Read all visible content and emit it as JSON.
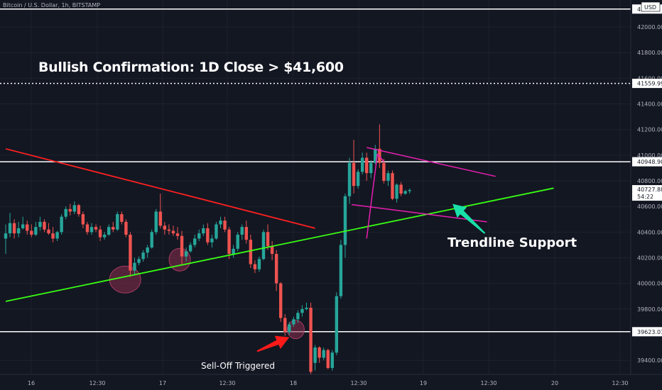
{
  "header": {
    "symbol": "Bitcoin / U.S. Dollar, 1h, BITSTAMP"
  },
  "annotations": {
    "title": "Bullish Confirmation: 1D Close > $41,600",
    "trendline_support": "Trendline Support",
    "selloff": "Sell-Off Triggered"
  },
  "colors": {
    "background": "#131722",
    "up": "#26a69a",
    "down": "#ef5350",
    "support_line": "#39ff14",
    "resistance_line": "#ff2020",
    "channel": "#e81fb0",
    "arrow_red": "#ff1a1a",
    "arrow_teal": "#18e0a8",
    "circle": "#8b2d4d"
  },
  "chart_data": {
    "type": "candlestick",
    "title": "",
    "currency": "USD",
    "current_price_label": "40727.88",
    "countdown_label": "54:22",
    "y_ticks": [
      "42000.00",
      "41800.00",
      "41600.00",
      "41400.00",
      "41200.00",
      "41000.00",
      "40800.00",
      "40600.00",
      "40400.00",
      "40200.00",
      "40000.00",
      "39800.00",
      "39400.00"
    ],
    "x_ticks": [
      "16",
      "12:30",
      "17",
      "12:30",
      "18",
      "12:30",
      "19",
      "12:30",
      "20",
      "12:30"
    ],
    "horizontal_levels": [
      {
        "label": "42140",
        "value": 42140,
        "style": "solid"
      },
      {
        "label": "41559.99",
        "value": 41559.99,
        "style": "dashed"
      },
      {
        "label": "40948.90",
        "value": 40948.9,
        "style": "solid"
      },
      {
        "label": "39623.01",
        "value": 39623.01,
        "style": "solid"
      }
    ],
    "ylim": [
      39290,
      42205
    ],
    "candles": [
      [
        40350,
        40460,
        40230,
        40390
      ],
      [
        40390,
        40550,
        40360,
        40470
      ],
      [
        40470,
        40500,
        40350,
        40390
      ],
      [
        40390,
        40480,
        40360,
        40430
      ],
      [
        40430,
        40520,
        40420,
        40460
      ],
      [
        40460,
        40490,
        40380,
        40410
      ],
      [
        40410,
        40460,
        40360,
        40380
      ],
      [
        40380,
        40480,
        40370,
        40440
      ],
      [
        40440,
        40520,
        40410,
        40480
      ],
      [
        40480,
        40500,
        40400,
        40420
      ],
      [
        40420,
        40470,
        40380,
        40390
      ],
      [
        40390,
        40440,
        40320,
        40350
      ],
      [
        40350,
        40410,
        40330,
        40400
      ],
      [
        40400,
        40540,
        40380,
        40520
      ],
      [
        40520,
        40600,
        40500,
        40580
      ],
      [
        40580,
        40620,
        40530,
        40560
      ],
      [
        40560,
        40640,
        40540,
        40610
      ],
      [
        40610,
        40620,
        40520,
        40540
      ],
      [
        40540,
        40560,
        40430,
        40460
      ],
      [
        40460,
        40480,
        40380,
        40400
      ],
      [
        40400,
        40470,
        40380,
        40440
      ],
      [
        40440,
        40460,
        40400,
        40420
      ],
      [
        40420,
        40450,
        40330,
        40360
      ],
      [
        40360,
        40400,
        40340,
        40380
      ],
      [
        40380,
        40460,
        40370,
        40440
      ],
      [
        40440,
        40480,
        40400,
        40420
      ],
      [
        40420,
        40560,
        40410,
        40540
      ],
      [
        40540,
        40560,
        40460,
        40480
      ],
      [
        40480,
        40500,
        40360,
        40380
      ],
      [
        40380,
        40400,
        40050,
        40100
      ],
      [
        40100,
        40200,
        40060,
        40160
      ],
      [
        40160,
        40210,
        40140,
        40190
      ],
      [
        40190,
        40260,
        40170,
        40240
      ],
      [
        40240,
        40300,
        40200,
        40280
      ],
      [
        40280,
        40420,
        40270,
        40400
      ],
      [
        40400,
        40580,
        40380,
        40560
      ],
      [
        40560,
        40700,
        40430,
        40450
      ],
      [
        40450,
        40480,
        40380,
        40420
      ],
      [
        40420,
        40460,
        40380,
        40410
      ],
      [
        40410,
        40450,
        40370,
        40390
      ],
      [
        40390,
        40440,
        40340,
        40370
      ],
      [
        40370,
        40410,
        40140,
        40210
      ],
      [
        40210,
        40280,
        40170,
        40250
      ],
      [
        40250,
        40320,
        40240,
        40300
      ],
      [
        40300,
        40380,
        40280,
        40350
      ],
      [
        40350,
        40420,
        40330,
        40390
      ],
      [
        40390,
        40460,
        40370,
        40430
      ],
      [
        40430,
        40470,
        40300,
        40320
      ],
      [
        40320,
        40380,
        40280,
        40350
      ],
      [
        40350,
        40480,
        40340,
        40460
      ],
      [
        40460,
        40520,
        40430,
        40490
      ],
      [
        40490,
        40520,
        40400,
        40420
      ],
      [
        40420,
        40440,
        40190,
        40230
      ],
      [
        40230,
        40300,
        40200,
        40270
      ],
      [
        40270,
        40400,
        40250,
        40380
      ],
      [
        40380,
        40460,
        40340,
        40440
      ],
      [
        40440,
        40490,
        40310,
        40340
      ],
      [
        40340,
        40380,
        40120,
        40150
      ],
      [
        40150,
        40180,
        40080,
        40110
      ],
      [
        40110,
        40210,
        40090,
        40190
      ],
      [
        40190,
        40420,
        40180,
        40400
      ],
      [
        40400,
        40460,
        40260,
        40290
      ],
      [
        40290,
        40330,
        40180,
        40230
      ],
      [
        40230,
        40260,
        39940,
        40000
      ],
      [
        40000,
        40010,
        39700,
        39730
      ],
      [
        39730,
        39760,
        39590,
        39620
      ],
      [
        39620,
        39700,
        39600,
        39680
      ],
      [
        39680,
        39740,
        39660,
        39720
      ],
      [
        39720,
        39790,
        39690,
        39770
      ],
      [
        39770,
        39830,
        39740,
        39800
      ],
      [
        39800,
        39850,
        39790,
        39810
      ],
      [
        39810,
        39850,
        39290,
        39310
      ],
      [
        39380,
        39520,
        39320,
        39500
      ],
      [
        39500,
        39510,
        39380,
        39420
      ],
      [
        39420,
        39500,
        39400,
        39480
      ],
      [
        39480,
        39490,
        39330,
        39340
      ],
      [
        39340,
        39480,
        39320,
        39460
      ],
      [
        39460,
        39930,
        39440,
        39900
      ],
      [
        39900,
        40340,
        39880,
        40300
      ],
      [
        40300,
        40700,
        40200,
        40680
      ],
      [
        40680,
        40980,
        40620,
        40940
      ],
      [
        40940,
        41120,
        40700,
        40760
      ],
      [
        40760,
        40890,
        40740,
        40870
      ],
      [
        40870,
        41020,
        40850,
        40980
      ],
      [
        40980,
        41020,
        40800,
        40860
      ],
      [
        40860,
        40960,
        40820,
        40940
      ],
      [
        40940,
        41080,
        40930,
        41050
      ],
      [
        41050,
        41240,
        40900,
        40940
      ],
      [
        40940,
        40970,
        40780,
        40800
      ],
      [
        40800,
        40880,
        40760,
        40860
      ],
      [
        40860,
        40880,
        40650,
        40660
      ],
      [
        40660,
        40780,
        40630,
        40770
      ],
      [
        40770,
        40790,
        40680,
        40700
      ],
      [
        40700,
        40730,
        40690,
        40720
      ],
      [
        40720,
        40740,
        40700,
        40728
      ]
    ],
    "trendlines": [
      {
        "name": "support",
        "from": [
          0,
          39860
        ],
        "to": [
          127.5,
          40743
        ]
      },
      {
        "name": "resistance",
        "from": [
          0,
          41050
        ],
        "to": [
          72,
          40430
        ]
      },
      {
        "name": "channel-upper",
        "from": [
          84,
          41060
        ],
        "to": [
          114,
          40835
        ]
      },
      {
        "name": "channel-lower",
        "from": [
          80.5,
          40615
        ],
        "to": [
          112,
          40480
        ]
      },
      {
        "name": "breakout-leg",
        "from": [
          84,
          40350
        ],
        "to": [
          86.5,
          41010
        ]
      },
      {
        "name": "breakout-leg-2",
        "from": [
          86.5,
          41010
        ],
        "to": [
          88,
          40950
        ]
      }
    ],
    "highlight_circles": [
      {
        "candle": 27.8,
        "price": 40030
      },
      {
        "candle": 40.5,
        "price": 40185
      },
      {
        "candle": 67.5,
        "price": 39640
      }
    ],
    "arrows": [
      {
        "name": "red",
        "tail": [
          58.5,
          39470
        ],
        "head": [
          66,
          39580
        ]
      },
      {
        "name": "teal",
        "tail": [
          111.5,
          40390
        ],
        "head": [
          104,
          40620
        ]
      }
    ],
    "price_axis_markers": [
      {
        "label": "40727.88",
        "sub": "54:22",
        "value": 40727.88
      }
    ]
  }
}
